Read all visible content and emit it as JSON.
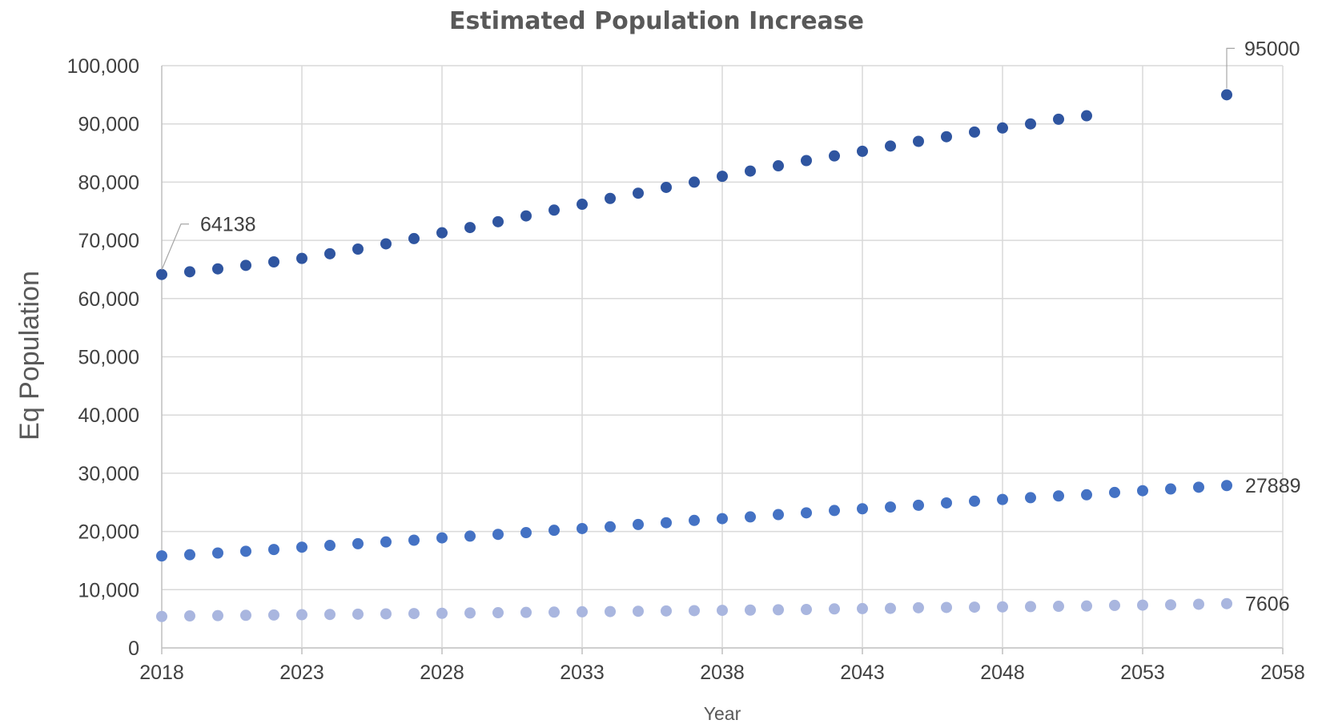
{
  "chart_data": {
    "type": "scatter",
    "title": "Estimated Population Increase",
    "xlabel": "Year",
    "ylabel": "Eq Population",
    "xlim": [
      2018,
      2058
    ],
    "ylim": [
      0,
      100000
    ],
    "x_ticks": [
      "2018",
      "2023",
      "2028",
      "2033",
      "2038",
      "2043",
      "2048",
      "2053",
      "2058"
    ],
    "y_ticks": [
      "0",
      "10,000",
      "20,000",
      "30,000",
      "40,000",
      "50,000",
      "60,000",
      "70,000",
      "80,000",
      "90,000",
      "100,000"
    ],
    "grid": true,
    "legend": "none",
    "series": [
      {
        "color": "#2f55a0",
        "x": [
          2018,
          2019,
          2020,
          2021,
          2022,
          2023,
          2024,
          2025,
          2026,
          2027,
          2028,
          2029,
          2030,
          2031,
          2032,
          2033,
          2034,
          2035,
          2036,
          2037,
          2038,
          2039,
          2040,
          2041,
          2042,
          2043,
          2044,
          2045,
          2046,
          2047,
          2048,
          2049,
          2050,
          2051,
          2056
        ],
        "y": [
          64138,
          64600,
          65100,
          65700,
          66300,
          66900,
          67700,
          68500,
          69400,
          70300,
          71300,
          72200,
          73200,
          74200,
          75200,
          76200,
          77200,
          78100,
          79100,
          80000,
          81000,
          81900,
          82800,
          83700,
          84500,
          85300,
          86200,
          87000,
          87800,
          88600,
          89300,
          90000,
          90800,
          91400,
          95000
        ],
        "labels": [
          {
            "x": 2018,
            "text": "64138"
          },
          {
            "x": 2056,
            "text": "95000"
          }
        ]
      },
      {
        "color": "#4472c4",
        "x": [
          2018,
          2019,
          2020,
          2021,
          2022,
          2023,
          2024,
          2025,
          2026,
          2027,
          2028,
          2029,
          2030,
          2031,
          2032,
          2033,
          2034,
          2035,
          2036,
          2037,
          2038,
          2039,
          2040,
          2041,
          2042,
          2043,
          2044,
          2045,
          2046,
          2047,
          2048,
          2049,
          2050,
          2051,
          2052,
          2053,
          2054,
          2055,
          2056
        ],
        "y": [
          15800,
          16000,
          16300,
          16600,
          16900,
          17300,
          17600,
          17900,
          18200,
          18500,
          18900,
          19200,
          19500,
          19800,
          20200,
          20500,
          20800,
          21200,
          21500,
          21900,
          22200,
          22500,
          22900,
          23200,
          23600,
          23900,
          24200,
          24500,
          24900,
          25200,
          25500,
          25800,
          26100,
          26300,
          26700,
          27000,
          27300,
          27600,
          27889
        ],
        "labels": [
          {
            "x": 2056,
            "text": "27889"
          }
        ]
      },
      {
        "color": "#a9b6df",
        "x": [
          2018,
          2019,
          2020,
          2021,
          2022,
          2023,
          2024,
          2025,
          2026,
          2027,
          2028,
          2029,
          2030,
          2031,
          2032,
          2033,
          2034,
          2035,
          2036,
          2037,
          2038,
          2039,
          2040,
          2041,
          2042,
          2043,
          2044,
          2045,
          2046,
          2047,
          2048,
          2049,
          2050,
          2051,
          2052,
          2053,
          2054,
          2055,
          2056
        ],
        "y": [
          5400,
          5500,
          5550,
          5600,
          5650,
          5700,
          5750,
          5800,
          5850,
          5900,
          5950,
          6000,
          6050,
          6100,
          6150,
          6200,
          6250,
          6300,
          6350,
          6400,
          6450,
          6500,
          6550,
          6600,
          6700,
          6750,
          6800,
          6900,
          6950,
          7000,
          7050,
          7100,
          7150,
          7200,
          7300,
          7350,
          7400,
          7500,
          7606
        ],
        "labels": [
          {
            "x": 2056,
            "text": "7606"
          }
        ]
      }
    ]
  }
}
